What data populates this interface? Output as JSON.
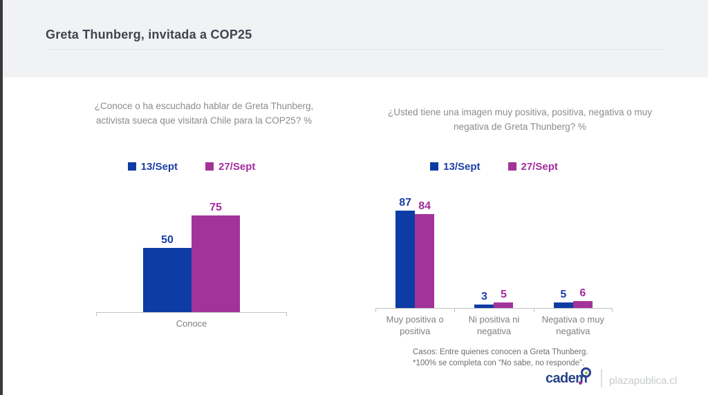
{
  "page": {
    "title": "Greta Thunberg, invitada a COP25"
  },
  "colors": {
    "series1_blue": "#0d3ca4",
    "series2_magenta": "#a23399",
    "title_text": "#3e4550",
    "question_text": "#8b8b8b",
    "axis_gray": "#bfc1c4",
    "header_band": "#f1f2f4",
    "brand_navy": "#264189",
    "brand_green": "#9bc53d"
  },
  "chart_data": [
    {
      "type": "bar",
      "title": "¿Conoce o ha escuchado hablar de Greta Thunberg, activista sueca que visitará Chile para la COP25? %",
      "categories": [
        "Conoce"
      ],
      "series": [
        {
          "name": "13/Sept",
          "values": [
            50
          ]
        },
        {
          "name": "27/Sept",
          "values": [
            75
          ]
        }
      ],
      "ylim": [
        0,
        100
      ],
      "grid": false,
      "legend_position": "top",
      "data_labels": true
    },
    {
      "type": "bar",
      "title": "¿Usted tiene una imagen muy positiva, positiva, negativa o muy negativa de Greta Thunberg? %",
      "categories": [
        "Muy positiva o positiva",
        "Ni positiva ni negativa",
        "Negativa o muy negativa"
      ],
      "series": [
        {
          "name": "13/Sept",
          "values": [
            87,
            3,
            5
          ]
        },
        {
          "name": "27/Sept",
          "values": [
            84,
            5,
            6
          ]
        }
      ],
      "ylim": [
        0,
        100
      ],
      "grid": false,
      "legend_position": "top",
      "data_labels": true
    }
  ],
  "footer": {
    "note_line1": "Casos: Entre quienes conocen a Greta Thunberg.",
    "note_line2": "*100% se completa con “No sabe, no responde”.",
    "brand": "cadem",
    "site": "plazapublica.cl"
  }
}
